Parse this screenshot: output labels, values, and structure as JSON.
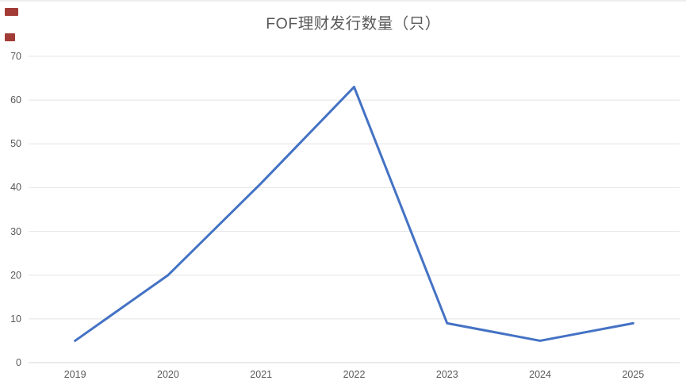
{
  "chart_data": {
    "type": "line",
    "title": "FOF理财发行数量（只）",
    "categories": [
      "2019",
      "2020",
      "2021",
      "2022",
      "2023",
      "2024",
      "2025"
    ],
    "series": [
      {
        "name": "FOF理财发行数量",
        "values": [
          5,
          20,
          41,
          63,
          9,
          5,
          9
        ]
      }
    ],
    "xlabel": "",
    "ylabel": "",
    "ylim": [
      0,
      70
    ],
    "y_ticks": [
      0,
      10,
      20,
      30,
      40,
      50,
      60,
      70
    ],
    "grid": true,
    "legend_position": "none"
  },
  "colors": {
    "line": "#4472C4",
    "title_text": "#595959",
    "tick_text": "#595959",
    "gridline": "#e4e4e4",
    "axis_line": "#d6d6d6",
    "watermark": "#a23b35"
  }
}
